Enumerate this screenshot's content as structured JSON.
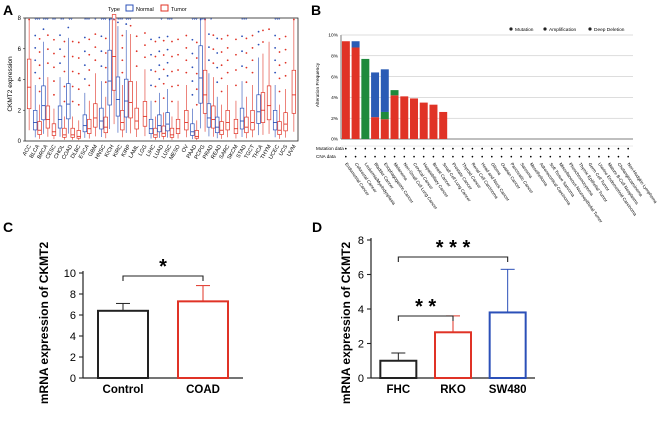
{
  "panels": {
    "a": "A",
    "b": "B",
    "c": "C",
    "d": "D"
  },
  "colors": {
    "normal": "#2b50b8",
    "tumor": "#e03326",
    "mutation": "#e03326",
    "amplification": "#1e8a3c",
    "deletion": "#2a5bb5",
    "rko": "#e03326",
    "sw480": "#2b50b8"
  },
  "chart_data": [
    {
      "panel": "A",
      "type": "box",
      "ylabel": "CKMT2 expression",
      "ylim": [
        0,
        8
      ],
      "yticks": [
        0,
        2,
        4,
        6,
        8
      ],
      "legend": {
        "title": "Type",
        "entries": [
          "Normal",
          "Tumor"
        ],
        "placement": "top"
      },
      "categories": [
        "ACC",
        "BLCA",
        "BRCA",
        "CESC",
        "CHOL",
        "COAD",
        "DLBC",
        "ESCA",
        "GBM",
        "HNSC",
        "KICH",
        "KIRC",
        "KIRP",
        "LAML",
        "LGG",
        "LIHC",
        "LUAD",
        "LUSC",
        "MESO",
        "OV",
        "PAAD",
        "PCPG",
        "PRAD",
        "READ",
        "SARC",
        "SKCM",
        "STAD",
        "TGCT",
        "THCA",
        "THYM",
        "UCEC",
        "UCS",
        "UVM"
      ],
      "significance": [
        "",
        "***",
        "***",
        "**",
        "**",
        "**",
        "",
        "***",
        "*",
        "***",
        "***",
        "***",
        "***",
        "",
        "",
        "",
        "*",
        "***",
        "",
        "",
        "***",
        "***",
        "*",
        "",
        "",
        "",
        "***",
        "",
        "",
        "",
        "***",
        "",
        ""
      ],
      "normal_median": [
        null,
        1.2,
        2.3,
        null,
        1.4,
        2.4,
        null,
        1.0,
        null,
        1.3,
        3.9,
        2.7,
        2.6,
        null,
        null,
        0.8,
        1.0,
        1.1,
        null,
        null,
        0.6,
        4.1,
        1.5,
        0.9,
        null,
        null,
        1.3,
        null,
        1.9,
        null,
        1.2,
        null,
        null
      ],
      "tumor_median": [
        3.5,
        0.7,
        1.4,
        0.6,
        0.4,
        0.4,
        0.3,
        0.8,
        1.5,
        0.9,
        5.5,
        1.2,
        2.5,
        1.3,
        1.6,
        0.4,
        0.5,
        0.4,
        0.8,
        1.2,
        0.3,
        3.0,
        1.4,
        0.7,
        1.2,
        0.8,
        0.9,
        1.2,
        2.0,
        2.3,
        0.7,
        1.1,
        3.0
      ]
    },
    {
      "panel": "B",
      "type": "stacked-bar",
      "ylabel": "Alteration Frequency",
      "ylim": [
        0,
        10
      ],
      "yticks": [
        "0%",
        "2%",
        "4%",
        "6%",
        "8%",
        "10%"
      ],
      "legend": [
        "Mutation",
        "Amplification",
        "Deep Deletion"
      ],
      "track_labels": [
        "Mutation data",
        "CNA data"
      ],
      "categories": [
        "Endometrial Cancer",
        "Colorectal Cancer",
        "Leukemia/Myelodysplasia",
        "Bladder Cancer",
        "Esophagogastric Cancer",
        "Melanoma",
        "Non-Small Cell Lung Cancer",
        "Cervical Cancer",
        "Hepatobiliary Cancer",
        "Breast Cancer",
        "Small Cell Lung Cancer",
        "Prostate Cancer",
        "Thyroid Cancer",
        "Renal Cell Carcinoma",
        "Head and Neck Cancer",
        "Glioma",
        "Ovarian Cancer",
        "Pancreatic Cancer",
        "Sarcoma",
        "Mesothelioma",
        "Adrenocortical Carcinoma",
        "Soft Tissue Sarcoma",
        "Miscellaneous Neuroepithelial Tumor",
        "Pheochromocytoma",
        "Thymic Epithelial Tumor",
        "Germ Cell Tumor",
        "Uterine Endometrioid Carcinoma",
        "Mature B-Cell Neoplasms",
        "Cholangiocarcinoma",
        "Non-Hodgkin Lymphoma"
      ],
      "series": [
        {
          "name": "Mutation",
          "values": [
            9.4,
            8.8,
            0,
            2.1,
            1.9,
            4.2,
            4.1,
            3.9,
            3.5,
            3.3,
            2.6,
            0,
            0,
            0,
            0,
            0,
            0,
            0,
            0,
            0,
            0,
            0,
            0,
            0,
            0,
            0,
            0,
            0,
            0,
            0
          ]
        },
        {
          "name": "Amplification",
          "values": [
            0,
            0,
            7.7,
            0,
            0.7,
            0.5,
            0,
            0,
            0,
            0,
            0,
            0,
            0,
            0,
            0,
            0,
            0,
            0,
            0,
            0,
            0,
            0,
            0,
            0,
            0,
            0,
            0,
            0,
            0,
            0
          ]
        },
        {
          "name": "Deep Deletion",
          "values": [
            0,
            0.6,
            0,
            4.3,
            4.1,
            0,
            0,
            0,
            0,
            0,
            0,
            0,
            0,
            0,
            0,
            0,
            0,
            0,
            0,
            0,
            0,
            0,
            0,
            0,
            0,
            0,
            0,
            0,
            0,
            0
          ]
        }
      ]
    },
    {
      "panel": "C",
      "type": "bar",
      "ylabel": "mRNA expression of CKMT2",
      "ylim": [
        0,
        10
      ],
      "yticks": [
        0,
        2,
        4,
        6,
        8,
        10
      ],
      "categories": [
        "Control",
        "COAD"
      ],
      "values": [
        6.4,
        7.3
      ],
      "errors": [
        0.7,
        1.5
      ],
      "significance": [
        {
          "pair": [
            0,
            1
          ],
          "label": "*"
        }
      ]
    },
    {
      "panel": "D",
      "type": "bar",
      "ylabel": "mRNA expression of CKMT2",
      "ylim": [
        0,
        8
      ],
      "yticks": [
        0,
        2,
        4,
        6,
        8
      ],
      "categories": [
        "FHC",
        "RKO",
        "SW480"
      ],
      "values": [
        1.0,
        2.65,
        3.8
      ],
      "errors": [
        0.45,
        0.95,
        2.5
      ],
      "significance": [
        {
          "pair": [
            0,
            1
          ],
          "label": "* *"
        },
        {
          "pair": [
            0,
            2
          ],
          "label": "* * *"
        }
      ]
    }
  ]
}
